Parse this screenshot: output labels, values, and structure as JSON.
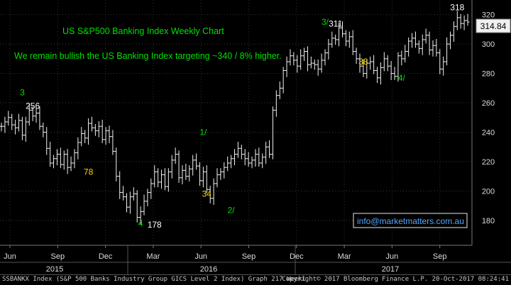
{
  "chart_data": {
    "type": "ohlc-bar",
    "title": "US S&P500 Banking Index Weekly Chart",
    "commentary": "We remain bullish the US Banking Index targeting ~340 / 8% higher.",
    "contact": "info@marketmatters.com.au",
    "last_value_tag": "314.84",
    "ylim": [
      163,
      330
    ],
    "y_ticks": [
      180,
      200,
      220,
      240,
      260,
      280,
      300,
      320
    ],
    "month_labels": [
      "Jun",
      "Sep",
      "Dec",
      "Mar",
      "Jun",
      "Sep",
      "Dec",
      "Mar",
      "Jun",
      "Sep"
    ],
    "year_labels": [
      "2015",
      "2016",
      "2017"
    ],
    "weekly_close": [
      244,
      247,
      250,
      245,
      243,
      248,
      238,
      247,
      255,
      251,
      253,
      244,
      240,
      229,
      219,
      222,
      225,
      218,
      225,
      216,
      219,
      226,
      233,
      239,
      236,
      246,
      243,
      241,
      244,
      235,
      241,
      237,
      227,
      210,
      199,
      196,
      189,
      196,
      198,
      182,
      186,
      193,
      199,
      205,
      213,
      206,
      211,
      203,
      213,
      221,
      225,
      209,
      214,
      210,
      215,
      221,
      217,
      207,
      213,
      201,
      195,
      205,
      211,
      213,
      216,
      219,
      222,
      225,
      229,
      225,
      222,
      219,
      221,
      225,
      219,
      223,
      230,
      225,
      255,
      265,
      270,
      282,
      288,
      292,
      289,
      285,
      292,
      295,
      286,
      287,
      286,
      283,
      289,
      294,
      300,
      304,
      303,
      311,
      307,
      302,
      305,
      295,
      290,
      285,
      280,
      287,
      288,
      282,
      277,
      284,
      290,
      285,
      280,
      278,
      292,
      290,
      295,
      302,
      304,
      300,
      297,
      303,
      306,
      296,
      299,
      294,
      283,
      288,
      300,
      306,
      312,
      318,
      314,
      316,
      315
    ],
    "annotations": [
      {
        "text": "256",
        "x": 9,
        "y": 256,
        "color": "#ffffff"
      },
      {
        "text": "3",
        "x": 6,
        "y": 265,
        "color": "#00e000"
      },
      {
        "text": "78",
        "x": 25,
        "y": 211,
        "color": "#ffd800"
      },
      {
        "text": "1/",
        "x": 58,
        "y": 238,
        "color": "#00e000"
      },
      {
        "text": "34",
        "x": 59,
        "y": 196,
        "color": "#ffd800"
      },
      {
        "text": "4",
        "x": 40,
        "y": 176,
        "color": "#00e000"
      },
      {
        "text": "178",
        "x": 44,
        "y": 175,
        "color": "#ffffff"
      },
      {
        "text": "2/",
        "x": 66,
        "y": 185,
        "color": "#00e000"
      },
      {
        "text": "3/",
        "x": 93,
        "y": 313,
        "color": "#00e000"
      },
      {
        "text": "311",
        "x": 96,
        "y": 312,
        "color": "#ffffff"
      },
      {
        "text": "38",
        "x": 104,
        "y": 286,
        "color": "#ffd800"
      },
      {
        "text": "4/",
        "x": 115,
        "y": 275,
        "color": "#00e000"
      },
      {
        "text": "318",
        "x": 131,
        "y": 323,
        "color": "#ffffff"
      }
    ],
    "grid": true,
    "legend": "none",
    "axis_side": "right"
  },
  "footer": {
    "left": "SSBANKX Index (S&P 500 Banks Industry Group GICS Level 2 Index) Graph 217  Weekl",
    "right": "Copyright© 2017 Bloomberg Finance L.P.     20-Oct-2017 08:24:41"
  }
}
